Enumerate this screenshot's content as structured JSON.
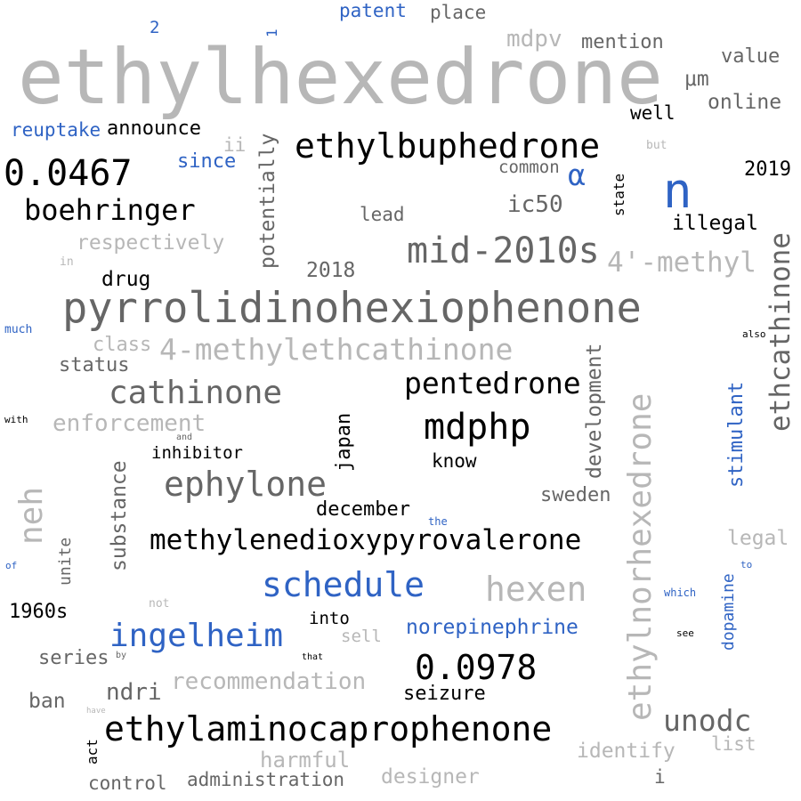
{
  "colors": {
    "black": "#000000",
    "dark_gray": "#666666",
    "light_gray": "#b7b7b7",
    "blue": "#2f63c4"
  },
  "words": [
    {
      "text": "ethylhexedrone",
      "color": "light_gray"
    },
    {
      "text": "pyrrolidinohexiophenone",
      "color": "dark_gray"
    },
    {
      "text": "ethylbuphedrone",
      "color": "black"
    },
    {
      "text": "mid-2010s",
      "color": "dark_gray"
    },
    {
      "text": "4'-methyl",
      "color": "light_gray"
    },
    {
      "text": "4-methylethcathinone",
      "color": "light_gray"
    },
    {
      "text": "cathinone",
      "color": "dark_gray"
    },
    {
      "text": "pentedrone",
      "color": "black"
    },
    {
      "text": "mdphp",
      "color": "black"
    },
    {
      "text": "ephylone",
      "color": "dark_gray"
    },
    {
      "text": "methylenedioxypyrovalerone",
      "color": "black"
    },
    {
      "text": "schedule",
      "color": "blue"
    },
    {
      "text": "hexen",
      "color": "light_gray"
    },
    {
      "text": "ingelheim",
      "color": "blue"
    },
    {
      "text": "0.0978",
      "color": "black"
    },
    {
      "text": "ethylaminocaprophenone",
      "color": "black"
    },
    {
      "text": "unodc",
      "color": "dark_gray"
    },
    {
      "text": "0.0467",
      "color": "black"
    },
    {
      "text": "boehringer",
      "color": "black"
    },
    {
      "text": "n",
      "color": "blue"
    },
    {
      "text": "α",
      "color": "blue"
    },
    {
      "text": "ethylnorhexedrone",
      "color": "light_gray"
    },
    {
      "text": "ethcathinone",
      "color": "dark_gray"
    },
    {
      "text": "neh",
      "color": "light_gray"
    },
    {
      "text": "potentially",
      "color": "dark_gray"
    },
    {
      "text": "substance",
      "color": "dark_gray"
    },
    {
      "text": "development",
      "color": "dark_gray"
    },
    {
      "text": "japan",
      "color": "black"
    },
    {
      "text": "stimulant",
      "color": "blue"
    },
    {
      "text": "dopamine",
      "color": "blue"
    },
    {
      "text": "unite",
      "color": "dark_gray"
    },
    {
      "text": "state",
      "color": "black"
    },
    {
      "text": "act",
      "color": "black"
    },
    {
      "text": "1",
      "color": "blue"
    },
    {
      "text": "patent",
      "color": "blue"
    },
    {
      "text": "place",
      "color": "dark_gray"
    },
    {
      "text": "2",
      "color": "blue"
    },
    {
      "text": "mdpv",
      "color": "light_gray"
    },
    {
      "text": "mention",
      "color": "dark_gray"
    },
    {
      "text": "value",
      "color": "dark_gray"
    },
    {
      "text": "μm",
      "color": "dark_gray"
    },
    {
      "text": "online",
      "color": "dark_gray"
    },
    {
      "text": "reuptake",
      "color": "blue"
    },
    {
      "text": "announce",
      "color": "black"
    },
    {
      "text": "well",
      "color": "black"
    },
    {
      "text": "ii",
      "color": "light_gray"
    },
    {
      "text": "but",
      "color": "light_gray"
    },
    {
      "text": "since",
      "color": "blue"
    },
    {
      "text": "common",
      "color": "dark_gray"
    },
    {
      "text": "2019",
      "color": "black"
    },
    {
      "text": "ic50",
      "color": "dark_gray"
    },
    {
      "text": "lead",
      "color": "dark_gray"
    },
    {
      "text": "illegal",
      "color": "black"
    },
    {
      "text": "respectively",
      "color": "light_gray"
    },
    {
      "text": "in",
      "color": "light_gray"
    },
    {
      "text": "2018",
      "color": "dark_gray"
    },
    {
      "text": "drug",
      "color": "black"
    },
    {
      "text": "much",
      "color": "blue"
    },
    {
      "text": "also",
      "color": "black"
    },
    {
      "text": "class",
      "color": "light_gray"
    },
    {
      "text": "status",
      "color": "dark_gray"
    },
    {
      "text": "enforcement",
      "color": "light_gray"
    },
    {
      "text": "with",
      "color": "black"
    },
    {
      "text": "and",
      "color": "dark_gray"
    },
    {
      "text": "inhibitor",
      "color": "black"
    },
    {
      "text": "know",
      "color": "black"
    },
    {
      "text": "sweden",
      "color": "dark_gray"
    },
    {
      "text": "december",
      "color": "black"
    },
    {
      "text": "the",
      "color": "blue"
    },
    {
      "text": "legal",
      "color": "light_gray"
    },
    {
      "text": "of",
      "color": "blue"
    },
    {
      "text": "to",
      "color": "blue"
    },
    {
      "text": "not",
      "color": "light_gray"
    },
    {
      "text": "which",
      "color": "blue"
    },
    {
      "text": "1960s",
      "color": "black"
    },
    {
      "text": "into",
      "color": "black"
    },
    {
      "text": "sell",
      "color": "light_gray"
    },
    {
      "text": "norepinephrine",
      "color": "blue"
    },
    {
      "text": "see",
      "color": "black"
    },
    {
      "text": "series",
      "color": "dark_gray"
    },
    {
      "text": "by",
      "color": "dark_gray"
    },
    {
      "text": "that",
      "color": "black"
    },
    {
      "text": "recommendation",
      "color": "light_gray"
    },
    {
      "text": "seizure",
      "color": "black"
    },
    {
      "text": "ban",
      "color": "dark_gray"
    },
    {
      "text": "ndri",
      "color": "dark_gray"
    },
    {
      "text": "have",
      "color": "light_gray"
    },
    {
      "text": "list",
      "color": "light_gray"
    },
    {
      "text": "identify",
      "color": "light_gray"
    },
    {
      "text": "harmful",
      "color": "light_gray"
    },
    {
      "text": "control",
      "color": "dark_gray"
    },
    {
      "text": "administration",
      "color": "dark_gray"
    },
    {
      "text": "designer",
      "color": "light_gray"
    },
    {
      "text": "i",
      "color": "dark_gray"
    }
  ]
}
